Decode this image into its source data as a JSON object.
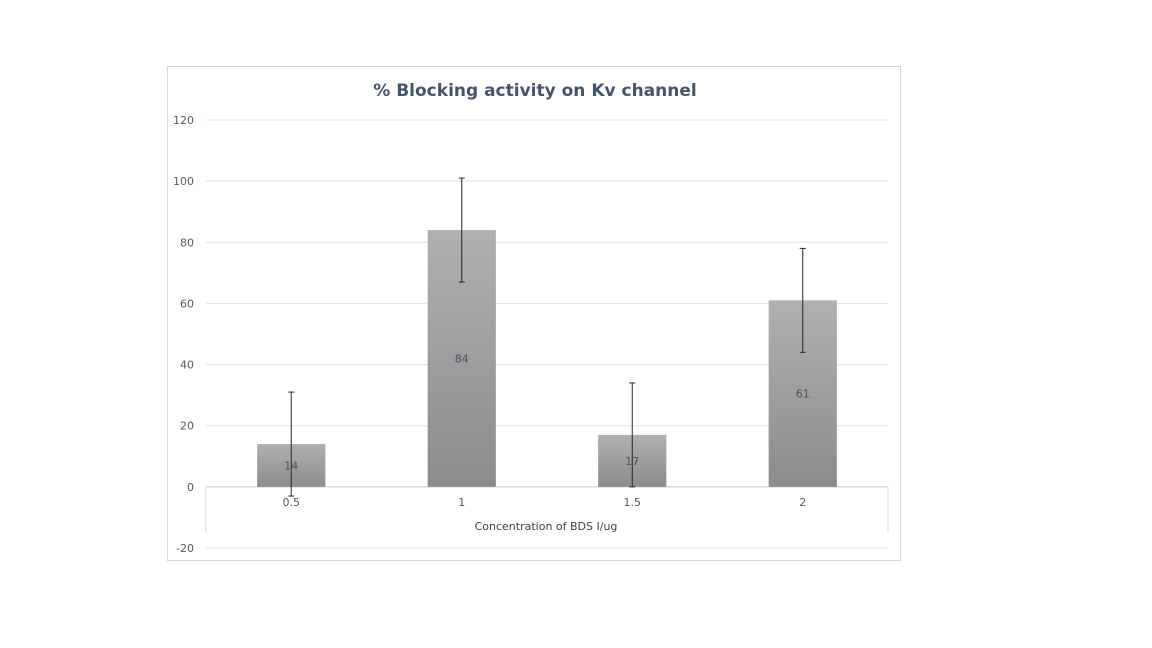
{
  "chart_data": {
    "type": "bar",
    "title": "% Blocking activity on Kv channel",
    "xlabel": "Concentration of BDS I/ug",
    "ylabel": "",
    "categories": [
      "0.5",
      "1",
      "1.5",
      "2"
    ],
    "values": [
      14,
      84,
      17,
      61
    ],
    "error": [
      17,
      17,
      17,
      17
    ],
    "data_labels": [
      "14",
      "84",
      "17",
      "61"
    ],
    "ylim": [
      -20,
      120
    ],
    "yticks": [
      "-20",
      "0",
      "20",
      "40",
      "60",
      "80",
      "100",
      "120"
    ],
    "grid": true,
    "legend": "none",
    "colors": {
      "bar_top": "#b0b0b0",
      "bar_bottom": "#8c8c8c",
      "grid": "#e0e0e0",
      "error_bar": "#262626"
    }
  }
}
